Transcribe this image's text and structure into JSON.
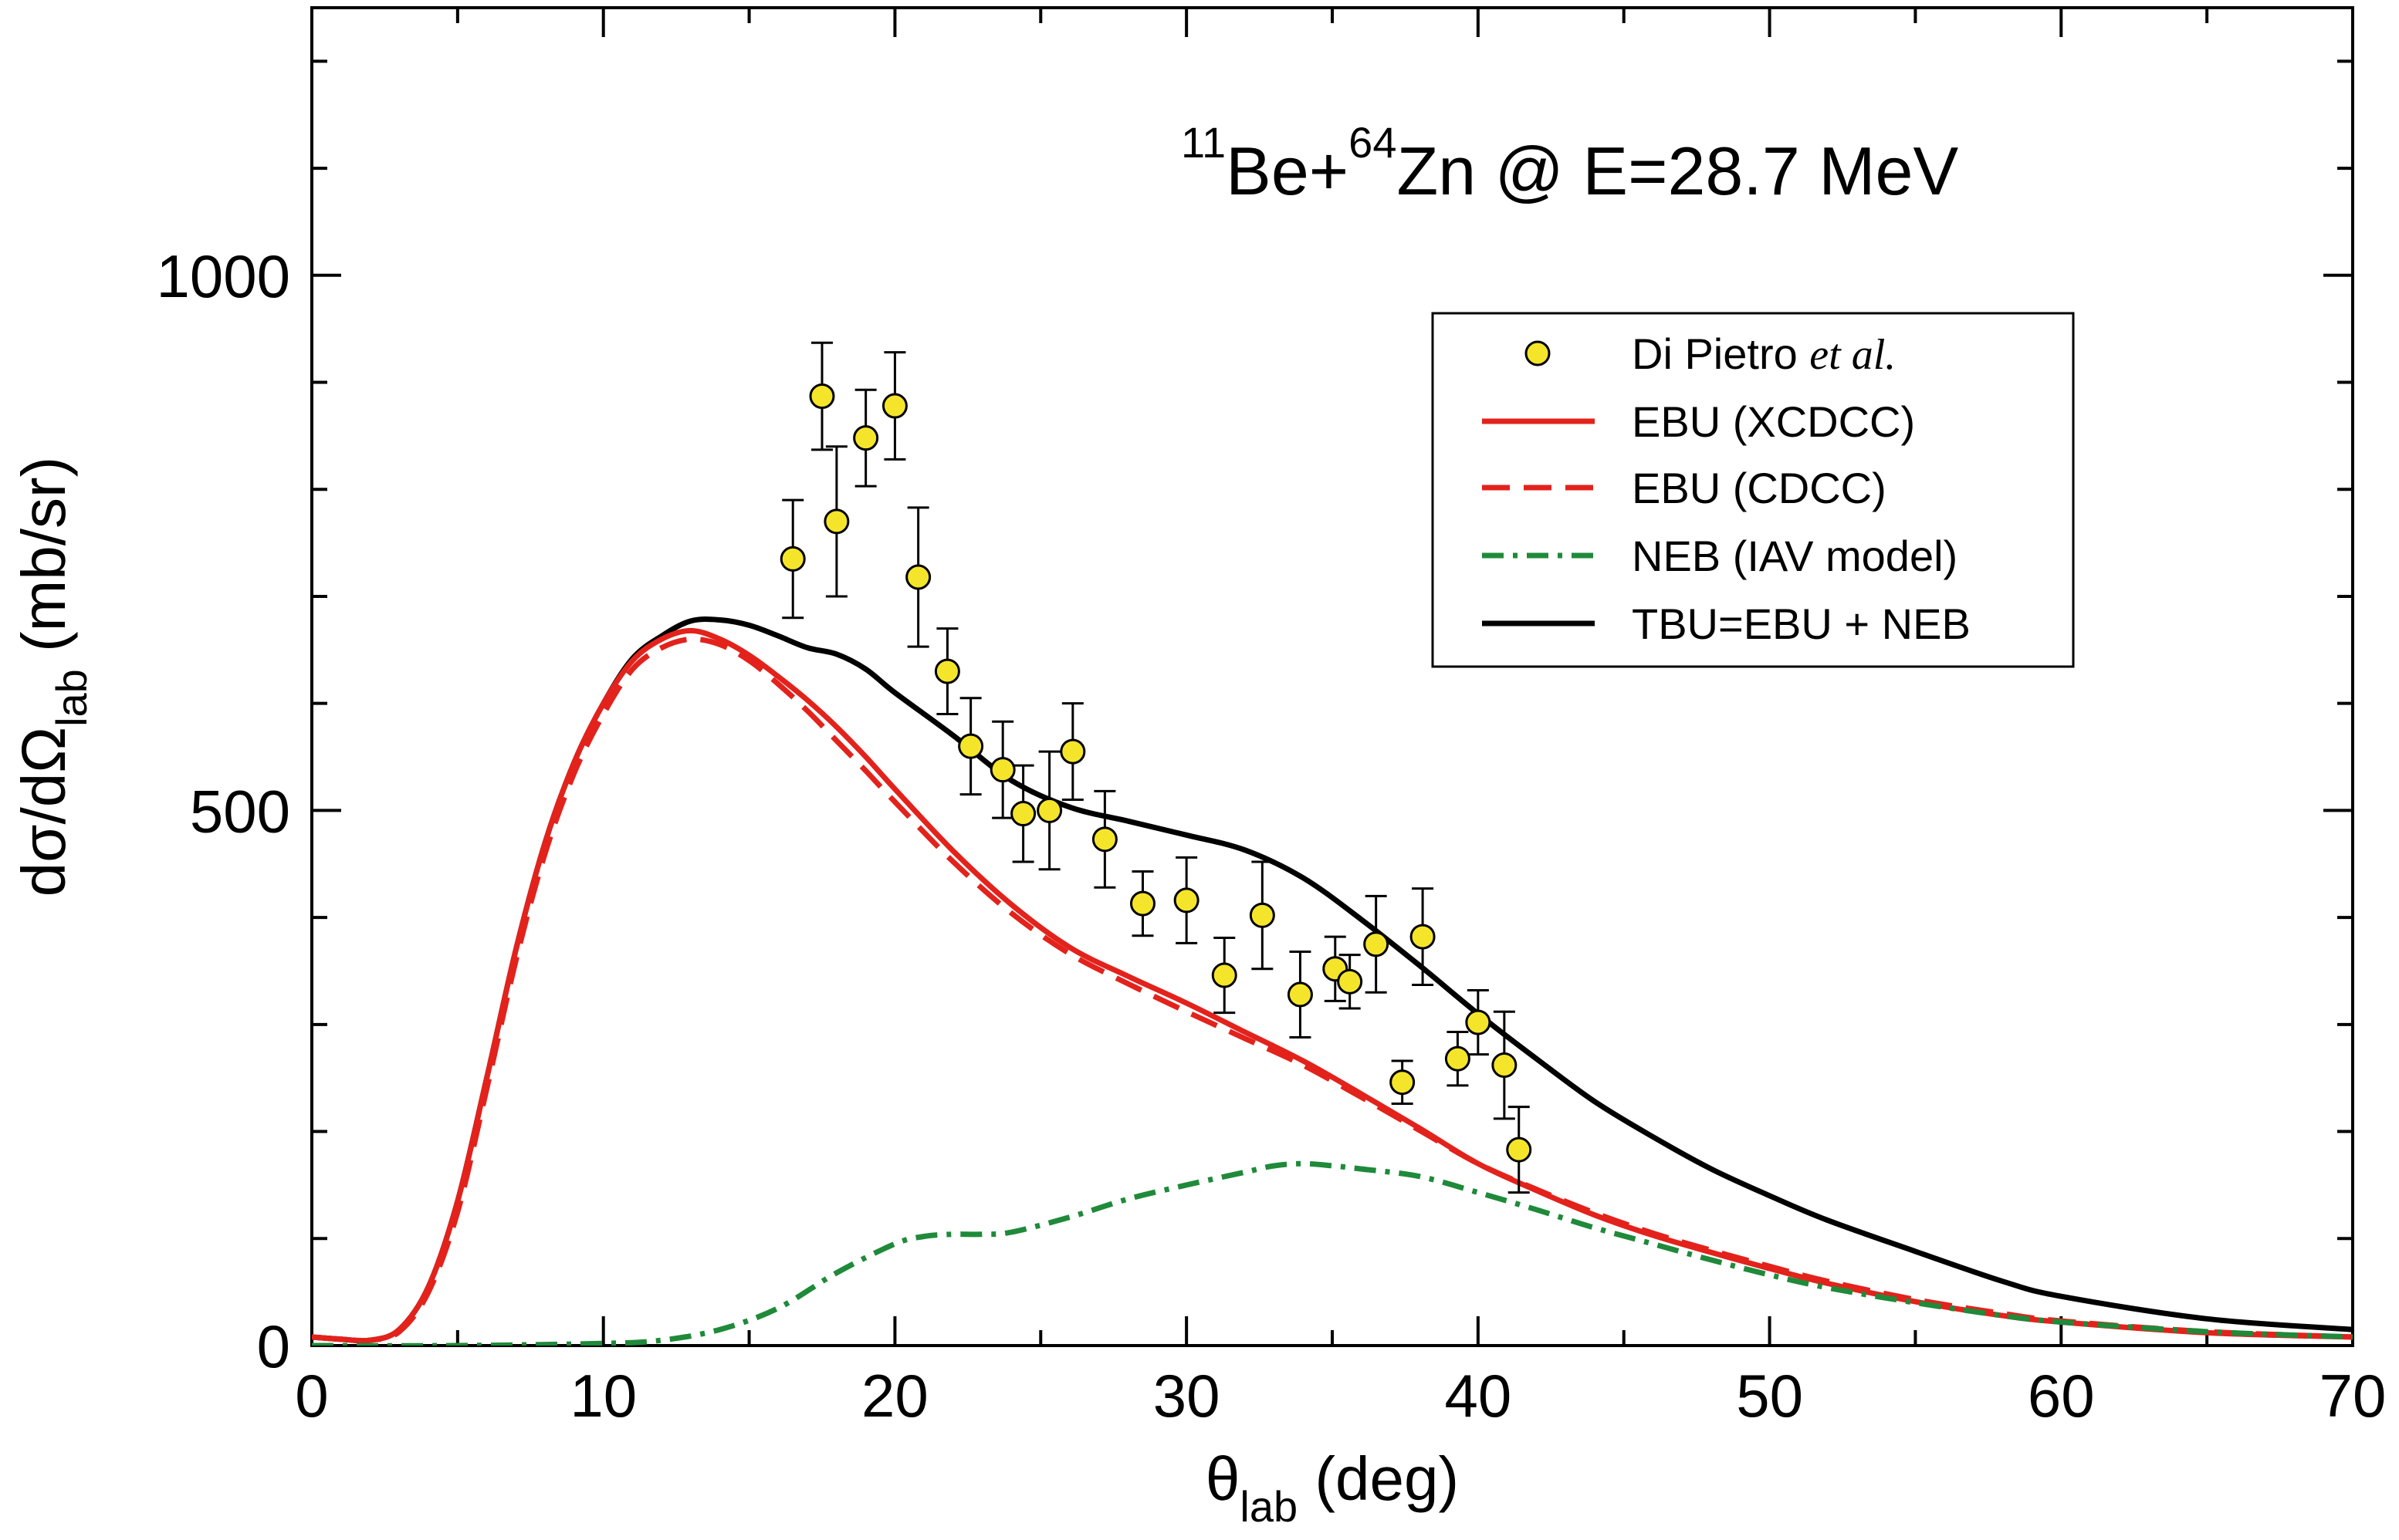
{
  "chart_data": {
    "type": "line",
    "title": {
      "projectile_mass": "11",
      "projectile": "Be+",
      "target_mass": "64",
      "target": "Zn @ E=28.7 MeV"
    },
    "xlabel": {
      "main": "θ",
      "sub": "lab",
      "unit": " (deg)"
    },
    "ylabel": {
      "main": "dσ/dΩ",
      "sub": "lab",
      "unit": " (mb/sr)"
    },
    "xlim": [
      0,
      70
    ],
    "ylim": [
      0,
      1250
    ],
    "x_ticks": [
      "0",
      "10",
      "20",
      "30",
      "40",
      "50",
      "60",
      "70"
    ],
    "y_ticks": [
      "0",
      "500",
      "1000"
    ],
    "x_tick_values": [
      0,
      10,
      20,
      30,
      40,
      50,
      60,
      70
    ],
    "y_tick_values": [
      0,
      500,
      1000
    ],
    "grid": false,
    "legend_position": "upper-right",
    "series": [
      {
        "name": "Di Pietro",
        "name_italic": "et al.",
        "type": "scatter",
        "color": "#f5e52a",
        "points": [
          {
            "x": 16.5,
            "y": 735,
            "err": 55
          },
          {
            "x": 17.5,
            "y": 887,
            "err": 50
          },
          {
            "x": 18.0,
            "y": 770,
            "err": 70
          },
          {
            "x": 19.0,
            "y": 848,
            "err": 45
          },
          {
            "x": 20.0,
            "y": 878,
            "err": 50
          },
          {
            "x": 20.8,
            "y": 718,
            "err": 65
          },
          {
            "x": 21.8,
            "y": 630,
            "err": 40
          },
          {
            "x": 22.6,
            "y": 560,
            "err": 45
          },
          {
            "x": 23.7,
            "y": 538,
            "err": 45
          },
          {
            "x": 24.4,
            "y": 497,
            "err": 45
          },
          {
            "x": 25.3,
            "y": 500,
            "err": 55
          },
          {
            "x": 26.1,
            "y": 555,
            "err": 45
          },
          {
            "x": 27.2,
            "y": 473,
            "err": 45
          },
          {
            "x": 28.5,
            "y": 413,
            "err": 30
          },
          {
            "x": 30.0,
            "y": 416,
            "err": 40
          },
          {
            "x": 31.3,
            "y": 346,
            "err": 35
          },
          {
            "x": 32.6,
            "y": 402,
            "err": 50
          },
          {
            "x": 33.9,
            "y": 328,
            "err": 40
          },
          {
            "x": 35.1,
            "y": 352,
            "err": 30
          },
          {
            "x": 35.6,
            "y": 340,
            "err": 25
          },
          {
            "x": 36.5,
            "y": 375,
            "err": 45
          },
          {
            "x": 37.4,
            "y": 246,
            "err": 20
          },
          {
            "x": 38.1,
            "y": 382,
            "err": 45
          },
          {
            "x": 39.3,
            "y": 268,
            "err": 25
          },
          {
            "x": 40.0,
            "y": 302,
            "err": 30
          },
          {
            "x": 40.9,
            "y": 262,
            "err": 50
          },
          {
            "x": 41.4,
            "y": 183,
            "err": 40
          }
        ]
      },
      {
        "name": "EBU (XCDCC)",
        "type": "line",
        "style": "solid",
        "color": "#e3221c",
        "x": [
          0,
          1,
          2,
          3,
          4,
          5,
          6,
          7,
          8,
          9,
          10,
          11,
          12,
          13,
          14,
          15,
          16,
          17,
          18,
          19,
          20,
          22,
          24,
          26,
          28,
          30,
          32,
          34,
          36,
          38,
          40,
          42,
          44,
          46,
          48,
          50,
          52,
          55,
          58,
          60,
          65,
          70
        ],
        "y": [
          8,
          6,
          5,
          15,
          55,
          135,
          250,
          370,
          470,
          545,
          600,
          640,
          660,
          668,
          660,
          645,
          625,
          603,
          578,
          550,
          520,
          462,
          412,
          372,
          345,
          320,
          293,
          266,
          235,
          203,
          170,
          145,
          122,
          103,
          87,
          72,
          58,
          41,
          28,
          22,
          12,
          8
        ]
      },
      {
        "name": "EBU (CDCC)",
        "type": "line",
        "style": "dashed",
        "color": "#e3221c",
        "x": [
          0,
          1,
          2,
          3,
          4,
          5,
          6,
          7,
          8,
          9,
          10,
          11,
          12,
          13,
          14,
          15,
          16,
          17,
          18,
          19,
          20,
          22,
          24,
          26,
          28,
          30,
          32,
          34,
          36,
          38,
          40,
          42,
          44,
          46,
          48,
          50,
          52,
          55,
          58,
          60,
          65,
          70
        ],
        "y": [
          8,
          6,
          5,
          13,
          50,
          125,
          240,
          360,
          460,
          535,
          590,
          632,
          652,
          660,
          655,
          640,
          618,
          593,
          565,
          537,
          508,
          452,
          404,
          366,
          338,
          312,
          287,
          262,
          232,
          201,
          170,
          146,
          124,
          105,
          89,
          74,
          60,
          43,
          30,
          23,
          13,
          8
        ]
      },
      {
        "name": "NEB (IAV model)",
        "type": "line",
        "style": "dash-dot",
        "color": "#1f8a3a",
        "x": [
          0,
          5,
          10,
          12,
          14,
          16,
          18,
          20,
          21,
          22,
          23,
          24,
          26,
          28,
          30,
          32,
          33,
          34,
          35,
          36,
          38,
          40,
          42,
          44,
          46,
          48,
          50,
          52,
          55,
          58,
          60,
          65,
          70
        ],
        "y": [
          0,
          0,
          2,
          5,
          15,
          35,
          68,
          95,
          102,
          104,
          104,
          106,
          120,
          137,
          150,
          162,
          168,
          170,
          168,
          165,
          158,
          143,
          127,
          110,
          95,
          80,
          66,
          54,
          40,
          28,
          22,
          13,
          8
        ]
      },
      {
        "name": "TBU=EBU + NEB",
        "type": "line",
        "style": "solid",
        "color": "#000000",
        "x": [
          0,
          1,
          2,
          3,
          4,
          5,
          6,
          7,
          8,
          9,
          10,
          11,
          12,
          13,
          14,
          15,
          16,
          17,
          18,
          19,
          20,
          22,
          24,
          26,
          28,
          30,
          32,
          34,
          36,
          38,
          40,
          42,
          44,
          46,
          48,
          50,
          52,
          55,
          58,
          60,
          65,
          70
        ],
        "y": [
          8,
          6,
          5,
          15,
          55,
          135,
          250,
          370,
          470,
          545,
          600,
          642,
          663,
          677,
          678,
          673,
          663,
          652,
          646,
          632,
          610,
          570,
          528,
          503,
          490,
          477,
          463,
          437,
          398,
          355,
          310,
          268,
          228,
          195,
          165,
          140,
          117,
          88,
          60,
          46,
          25,
          15
        ]
      }
    ]
  }
}
